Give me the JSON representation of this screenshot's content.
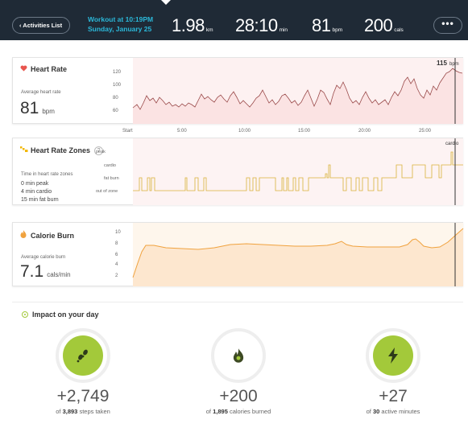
{
  "header": {
    "back_label": "‹ Activities List",
    "workout_title": "Workout at 10:19PM",
    "workout_date": "Sunday, January 25",
    "stats": [
      {
        "value": "1.98",
        "unit": "km"
      },
      {
        "value": "28:10",
        "unit": "min"
      },
      {
        "value": "81",
        "unit": "bpm"
      },
      {
        "value": "200",
        "unit": "cals"
      }
    ],
    "more_label": "•••"
  },
  "heart_rate": {
    "title": "Heart Rate",
    "avg_label": "Average heart rate",
    "avg_value": "81",
    "avg_unit": "bpm",
    "marker_label": "115",
    "marker_unit": "bpm",
    "y_ticks": [
      "120",
      "100",
      "80",
      "60"
    ],
    "x_ticks": [
      "Start",
      "5:00",
      "10:00",
      "15:00",
      "20:00",
      "25:00"
    ]
  },
  "zones": {
    "title": "Heart Rate Zones",
    "help": "?",
    "list_label": "Time in heart rate zones",
    "peak": "0 min peak",
    "cardio": "4 min cardio",
    "fatburn": "15 min fat burn",
    "y_ticks": [
      "peak",
      "cardio",
      "fat burn",
      "out of zone"
    ],
    "marker_label": "cardio"
  },
  "calories": {
    "title": "Calorie Burn",
    "avg_label": "Average calorie burn",
    "avg_value": "7.1",
    "avg_unit": "cals/min",
    "y_ticks": [
      "10",
      "8",
      "6",
      "4",
      "2"
    ]
  },
  "impact": {
    "title": "Impact on your day",
    "items": [
      {
        "num": "+2,749",
        "pre": "of",
        "total": "3,893",
        "post": "steps taken"
      },
      {
        "num": "+200",
        "pre": "of",
        "total": "1,895",
        "post": "calories burned"
      },
      {
        "num": "+27",
        "pre": "of",
        "total": "30",
        "post": "active minutes"
      }
    ]
  },
  "colors": {
    "header_bg": "#1f2a36",
    "accent_blue": "#2bb7d8",
    "heart_line": "#9a4a4a",
    "zone_line": "#d9b23a",
    "calorie_line": "#f0a23e",
    "impact_green": "#a3c93a"
  }
}
